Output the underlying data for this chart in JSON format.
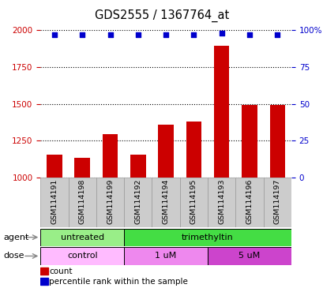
{
  "title": "GDS2555 / 1367764_at",
  "samples": [
    "GSM114191",
    "GSM114198",
    "GSM114199",
    "GSM114192",
    "GSM114194",
    "GSM114195",
    "GSM114193",
    "GSM114196",
    "GSM114197"
  ],
  "bar_values": [
    1155,
    1130,
    1295,
    1155,
    1360,
    1380,
    1895,
    1490,
    1490
  ],
  "percentile_values": [
    97,
    97,
    97,
    97,
    97,
    97,
    98,
    97,
    97
  ],
  "bar_color": "#cc0000",
  "dot_color": "#0000cc",
  "ylim_left": [
    1000,
    2000
  ],
  "ylim_right": [
    0,
    100
  ],
  "yticks_left": [
    1000,
    1250,
    1500,
    1750,
    2000
  ],
  "ytick_labels_left": [
    "1000",
    "1250",
    "1500",
    "1750",
    "2000"
  ],
  "yticks_right": [
    0,
    25,
    50,
    75,
    100
  ],
  "ytick_labels_right": [
    "0",
    "25",
    "50",
    "75",
    "100%"
  ],
  "agent_groups": [
    {
      "label": "untreated",
      "start": 0,
      "end": 3,
      "color": "#99ee88"
    },
    {
      "label": "trimethyltin",
      "start": 3,
      "end": 9,
      "color": "#44dd44"
    }
  ],
  "dose_groups": [
    {
      "label": "control",
      "start": 0,
      "end": 3,
      "color": "#ffbbff"
    },
    {
      "label": "1 uM",
      "start": 3,
      "end": 6,
      "color": "#ee88ee"
    },
    {
      "label": "5 uM",
      "start": 6,
      "end": 9,
      "color": "#cc44cc"
    }
  ],
  "legend_count_color": "#cc0000",
  "legend_dot_color": "#0000cc",
  "legend_count_label": "count",
  "legend_dot_label": "percentile rank within the sample",
  "xlabel_agent": "agent",
  "xlabel_dose": "dose",
  "sample_bg_color": "#cccccc",
  "sample_border_color": "#999999"
}
